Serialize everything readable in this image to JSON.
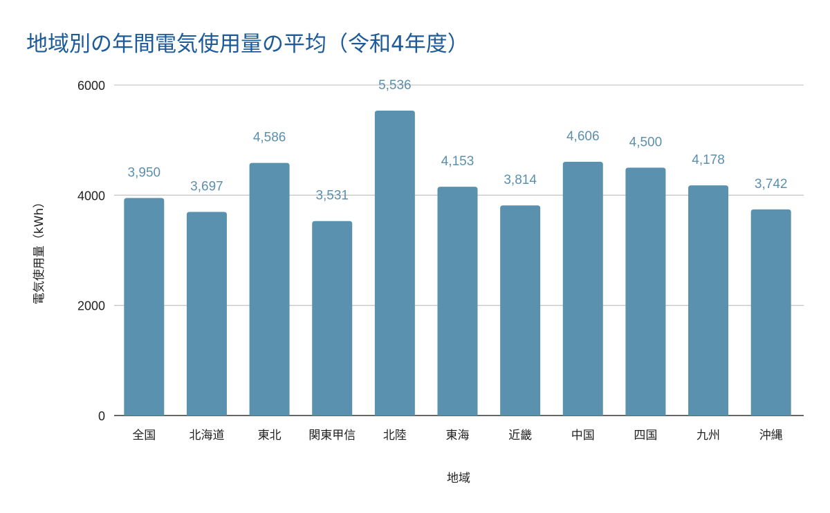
{
  "chart_data": {
    "type": "bar",
    "title": "地域別の年間電気使用量の平均（令和4年度）",
    "xlabel": "地域",
    "ylabel": "電気使用量（kWh）",
    "categories": [
      "全国",
      "北海道",
      "東北",
      "関東甲信",
      "北陸",
      "東海",
      "近畿",
      "中国",
      "四国",
      "九州",
      "沖縄"
    ],
    "values": [
      3950,
      3697,
      4586,
      3531,
      5536,
      4153,
      3814,
      4606,
      4500,
      4178,
      3742
    ],
    "value_labels": [
      "3,950",
      "3,697",
      "4,586",
      "3,531",
      "5,536",
      "4,153",
      "3,814",
      "4,606",
      "4,500",
      "4,178",
      "3,742"
    ],
    "ylim": [
      0,
      6000
    ],
    "yticks": [
      0,
      2000,
      4000,
      6000
    ],
    "ytick_labels": [
      "0",
      "2000",
      "4000",
      "6000"
    ],
    "grid": true,
    "bar_color": "#5991ae",
    "label_color": "#5b8fae",
    "title_color": "#1c5a99"
  }
}
